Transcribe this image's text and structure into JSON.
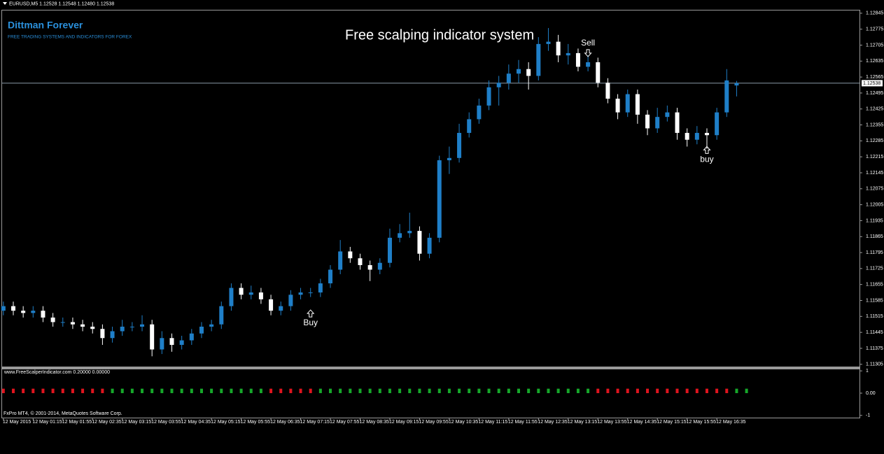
{
  "chart_data": [
    {
      "type": "candlestick",
      "symbol_header": "EURUSD,M5  1.12528 1.12548 1.12480 1.12538",
      "brand": "Dittman Forever",
      "tagline": "FREE TRADING SYSTEMS AND INDICATORS FOR FOREX",
      "title": "Free scalping indicator system",
      "open": [
        1.1154,
        1.1156,
        1.1154,
        1.1153,
        1.1154,
        1.1151,
        1.1149,
        1.1149,
        1.1148,
        1.1147,
        1.1146,
        1.1142,
        1.1145,
        1.1147,
        1.1147,
        1.1148,
        1.1137,
        1.1142,
        1.1139,
        1.1141,
        1.1144,
        1.1147,
        1.1148,
        1.1156,
        1.1164,
        1.1161,
        1.1162,
        1.1159,
        1.1154,
        1.1156,
        1.1161,
        1.1162,
        1.1162,
        1.1166,
        1.1172,
        1.118,
        1.1177,
        1.1174,
        1.1172,
        1.1175,
        1.1186,
        1.1188,
        1.1189,
        1.1179,
        1.1186,
        1.122,
        1.1221,
        1.1232,
        1.1238,
        1.1244,
        1.1252,
        1.1254,
        1.1258,
        1.126,
        1.1257,
        1.1271,
        1.1272,
        1.1266,
        1.1267,
        1.1261,
        1.1263,
        1.1254,
        1.1247,
        1.1241,
        1.1249,
        1.124,
        1.1234,
        1.1239,
        1.1241,
        1.1232,
        1.1229,
        1.1232,
        1.1231,
        1.1241,
        1.12528
      ],
      "high": [
        1.1158,
        1.1158,
        1.1156,
        1.1156,
        1.1156,
        1.1153,
        1.1151,
        1.1151,
        1.115,
        1.1149,
        1.1148,
        1.1147,
        1.115,
        1.1149,
        1.1152,
        1.115,
        1.1145,
        1.1144,
        1.1143,
        1.1146,
        1.1149,
        1.115,
        1.1158,
        1.1166,
        1.1166,
        1.1165,
        1.1164,
        1.1161,
        1.1158,
        1.1163,
        1.1164,
        1.1164,
        1.1168,
        1.1174,
        1.1185,
        1.1182,
        1.1179,
        1.1176,
        1.1177,
        1.119,
        1.1192,
        1.1197,
        1.1191,
        1.1188,
        1.1222,
        1.1226,
        1.1236,
        1.1241,
        1.1247,
        1.1255,
        1.1257,
        1.1262,
        1.1264,
        1.1263,
        1.1274,
        1.1278,
        1.1275,
        1.1271,
        1.1269,
        1.1266,
        1.1265,
        1.1256,
        1.1249,
        1.1251,
        1.1251,
        1.1242,
        1.1243,
        1.1244,
        1.1243,
        1.1234,
        1.1235,
        1.1234,
        1.1243,
        1.126,
        1.12548
      ],
      "low": [
        1.1152,
        1.1152,
        1.1151,
        1.1151,
        1.1149,
        1.1147,
        1.1147,
        1.1146,
        1.1145,
        1.1144,
        1.1139,
        1.114,
        1.1143,
        1.1145,
        1.1145,
        1.1134,
        1.1135,
        1.1136,
        1.1137,
        1.1139,
        1.1142,
        1.1145,
        1.1146,
        1.1154,
        1.1159,
        1.1159,
        1.1157,
        1.1152,
        1.1152,
        1.1154,
        1.1159,
        1.116,
        1.116,
        1.1164,
        1.117,
        1.1175,
        1.1172,
        1.1167,
        1.117,
        1.1173,
        1.1184,
        1.1186,
        1.1176,
        1.1177,
        1.1184,
        1.1214,
        1.1219,
        1.123,
        1.1236,
        1.1242,
        1.1244,
        1.1251,
        1.1254,
        1.1251,
        1.1255,
        1.1268,
        1.1263,
        1.1262,
        1.1259,
        1.1259,
        1.1252,
        1.1245,
        1.1238,
        1.1239,
        1.1236,
        1.1231,
        1.1232,
        1.1237,
        1.1229,
        1.1226,
        1.1227,
        1.1225,
        1.1229,
        1.1239,
        1.1248
      ],
      "close": [
        1.1156,
        1.1154,
        1.1153,
        1.1154,
        1.1151,
        1.1149,
        1.1149,
        1.1148,
        1.1147,
        1.1146,
        1.1142,
        1.1145,
        1.1147,
        1.1147,
        1.1148,
        1.1137,
        1.1142,
        1.1139,
        1.1141,
        1.1144,
        1.1147,
        1.1148,
        1.1156,
        1.1164,
        1.1161,
        1.1162,
        1.1159,
        1.1154,
        1.1156,
        1.1161,
        1.1162,
        1.1162,
        1.1166,
        1.1172,
        1.118,
        1.1177,
        1.1174,
        1.1172,
        1.1175,
        1.1186,
        1.1188,
        1.1189,
        1.1179,
        1.1186,
        1.122,
        1.1221,
        1.1232,
        1.1238,
        1.1244,
        1.1252,
        1.1254,
        1.1258,
        1.126,
        1.1257,
        1.1271,
        1.1272,
        1.1266,
        1.1267,
        1.1261,
        1.1263,
        1.1254,
        1.1247,
        1.1241,
        1.1249,
        1.124,
        1.1234,
        1.1239,
        1.1241,
        1.1232,
        1.1229,
        1.1232,
        1.1231,
        1.1241,
        1.1255,
        1.12538
      ],
      "up_color": "#1f7fc8",
      "down_color": "#ffffff",
      "xlim": [
        -0.2,
        86.4
      ],
      "ylim": [
        1.11295,
        1.1286
      ],
      "yticks": [
        1.12845,
        1.12775,
        1.12705,
        1.12635,
        1.12565,
        1.12495,
        1.12425,
        1.12355,
        1.12285,
        1.12215,
        1.12145,
        1.12075,
        1.12005,
        1.11935,
        1.11865,
        1.11795,
        1.11725,
        1.11655,
        1.11585,
        1.11515,
        1.11445,
        1.11375,
        1.11305
      ],
      "xticks": [
        {
          "value": 0,
          "label": "12 May 2015"
        },
        {
          "value": 3,
          "label": "12 May 01:15"
        },
        {
          "value": 6,
          "label": "12 May 01:55"
        },
        {
          "value": 9,
          "label": "12 May 02:35"
        },
        {
          "value": 12,
          "label": "12 May 03:15"
        },
        {
          "value": 15,
          "label": "12 May 03:55"
        },
        {
          "value": 18,
          "label": "12 May 04:35"
        },
        {
          "value": 21,
          "label": "12 May 05:15"
        },
        {
          "value": 24,
          "label": "12 May 05:55"
        },
        {
          "value": 27,
          "label": "12 May 06:35"
        },
        {
          "value": 30,
          "label": "12 May 07:15"
        },
        {
          "value": 33,
          "label": "12 May 07:55"
        },
        {
          "value": 36,
          "label": "12 May 08:35"
        },
        {
          "value": 39,
          "label": "12 May 09:15"
        },
        {
          "value": 42,
          "label": "12 May 09:55"
        },
        {
          "value": 45,
          "label": "12 May 10:35"
        },
        {
          "value": 48,
          "label": "12 May 11:15"
        },
        {
          "value": 51,
          "label": "12 May 11:55"
        },
        {
          "value": 54,
          "label": "12 May 12:35"
        },
        {
          "value": 57,
          "label": "12 May 13:15"
        },
        {
          "value": 60,
          "label": "12 May 13:55"
        },
        {
          "value": 63,
          "label": "12 May 14:35"
        },
        {
          "value": 66,
          "label": "12 May 15:15"
        },
        {
          "value": 69,
          "label": "12 May 15:55"
        },
        {
          "value": 72,
          "label": "12 May 16:35"
        }
      ],
      "price_line": 1.12538,
      "annotations": [
        {
          "text": "Sell",
          "x": 59,
          "y": 1.1267,
          "direction": "down"
        },
        {
          "text": "Buy",
          "x": 31,
          "y": 1.11528,
          "direction": "up"
        },
        {
          "text": "buy",
          "x": 71,
          "y": 1.12245,
          "direction": "up"
        }
      ]
    },
    {
      "type": "bar",
      "label": "www.FreeScalperIndicator.com  0.20000 0.00000",
      "series": [
        {
          "color": "#e0141e",
          "values": [
            0.2,
            0.2,
            0.2,
            0.2,
            0.2,
            0.2,
            0.2,
            0.2,
            0.2,
            0.2,
            0.2,
            null,
            null,
            null,
            null,
            null,
            null,
            null,
            null,
            null,
            null,
            null,
            null,
            null,
            null,
            null,
            null,
            0.2,
            0.2,
            0.2,
            0.2,
            0.2,
            null,
            null,
            null,
            null,
            null,
            null,
            null,
            null,
            null,
            null,
            null,
            null,
            null,
            null,
            null,
            null,
            null,
            null,
            null,
            null,
            null,
            null,
            null,
            null,
            null,
            null,
            null,
            null,
            0.2,
            0.2,
            0.2,
            0.2,
            0.2,
            0.2,
            0.2,
            0.2,
            0.2,
            0.2,
            0.2,
            0.2,
            0.2,
            0.2,
            null,
            null
          ]
        },
        {
          "color": "#16a82a",
          "values": [
            null,
            null,
            null,
            null,
            null,
            null,
            null,
            null,
            null,
            null,
            null,
            0.2,
            0.2,
            0.2,
            0.2,
            0.2,
            0.2,
            0.2,
            0.2,
            0.2,
            0.2,
            0.2,
            0.2,
            0.2,
            0.2,
            0.2,
            0.2,
            null,
            null,
            null,
            null,
            null,
            0.2,
            0.2,
            0.2,
            0.2,
            0.2,
            0.2,
            0.2,
            0.2,
            0.2,
            0.2,
            0.2,
            0.2,
            0.2,
            0.2,
            0.2,
            0.2,
            0.2,
            0.2,
            0.2,
            0.2,
            0.2,
            0.2,
            0.2,
            0.2,
            0.2,
            0.2,
            0.2,
            0.2,
            null,
            null,
            null,
            null,
            null,
            null,
            null,
            null,
            null,
            null,
            null,
            null,
            null,
            null,
            0.2,
            0.2
          ]
        }
      ],
      "xlim": [
        -0.2,
        86.4
      ],
      "ylim": [
        -1.1,
        1.1
      ],
      "yticks": [
        1,
        {
          "value": 0,
          "label": "0.00"
        },
        -1
      ]
    }
  ],
  "footer": "FxPro MT4, © 2001-2014, MetaQuotes Software Corp."
}
